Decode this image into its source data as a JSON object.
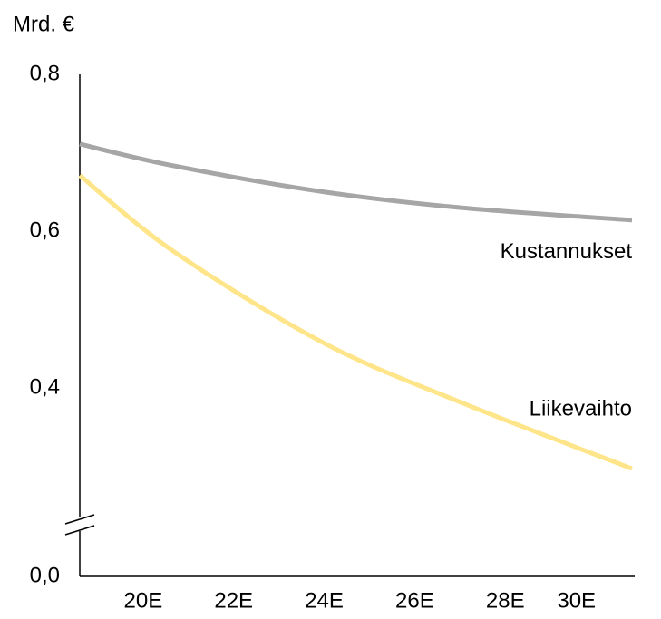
{
  "chart_data": {
    "type": "line",
    "y_axis_label": "Mrd. €",
    "x": [
      18.6,
      20.7,
      24,
      27,
      30.8
    ],
    "xlim": [
      18.6,
      30.8
    ],
    "xticks": [
      {
        "value": 20,
        "label": "20E"
      },
      {
        "value": 22,
        "label": "22E"
      },
      {
        "value": 24,
        "label": "24E"
      },
      {
        "value": 26,
        "label": "26E"
      },
      {
        "value": 28,
        "label": "28E"
      },
      {
        "value": 30,
        "label": "30E"
      }
    ],
    "ylim": [
      0,
      0.8
    ],
    "yticks": [
      {
        "value": 0,
        "label": "0,0"
      },
      {
        "value": 0.4,
        "label": "0,4"
      },
      {
        "value": 0.6,
        "label": "0,6"
      },
      {
        "value": 0.8,
        "label": "0,8"
      }
    ],
    "axis_break": true,
    "series": [
      {
        "name": "Kustannukset",
        "color": "#a6a6a6",
        "values": [
          0.711,
          0.683,
          0.65,
          0.63,
          0.614
        ]
      },
      {
        "name": "Liikevaihto",
        "color": "#ffe58a",
        "values": [
          0.671,
          0.573,
          0.457,
          0.382,
          0.297
        ]
      }
    ]
  }
}
